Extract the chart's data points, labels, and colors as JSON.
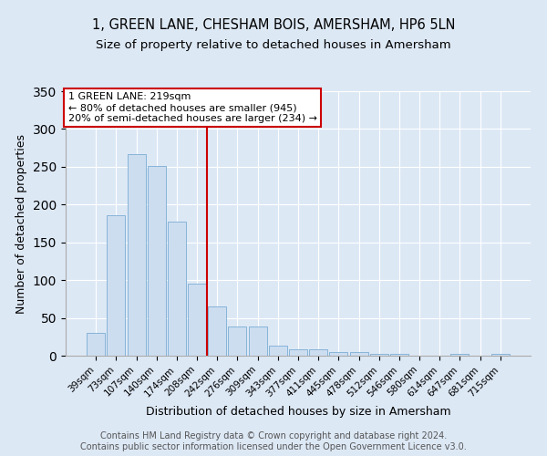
{
  "title": "1, GREEN LANE, CHESHAM BOIS, AMERSHAM, HP6 5LN",
  "subtitle": "Size of property relative to detached houses in Amersham",
  "xlabel": "Distribution of detached houses by size in Amersham",
  "ylabel": "Number of detached properties",
  "bar_labels": [
    "39sqm",
    "73sqm",
    "107sqm",
    "140sqm",
    "174sqm",
    "208sqm",
    "242sqm",
    "276sqm",
    "309sqm",
    "343sqm",
    "377sqm",
    "411sqm",
    "445sqm",
    "478sqm",
    "512sqm",
    "546sqm",
    "580sqm",
    "614sqm",
    "647sqm",
    "681sqm",
    "715sqm"
  ],
  "bar_values": [
    30,
    186,
    267,
    251,
    177,
    95,
    65,
    39,
    39,
    13,
    9,
    8,
    5,
    5,
    3,
    3,
    0,
    0,
    2,
    0,
    2
  ],
  "bar_color": "#ccddf0",
  "bar_edge_color": "#7aadd4",
  "ylim": [
    0,
    350
  ],
  "yticks": [
    0,
    50,
    100,
    150,
    200,
    250,
    300,
    350
  ],
  "vline_x_index": 5.5,
  "vline_color": "#cc0000",
  "annotation_title": "1 GREEN LANE: 219sqm",
  "annotation_line1": "← 80% of detached houses are smaller (945)",
  "annotation_line2": "20% of semi-detached houses are larger (234) →",
  "annotation_box_facecolor": "#ffffff",
  "annotation_box_edgecolor": "#cc0000",
  "footer_line1": "Contains HM Land Registry data © Crown copyright and database right 2024.",
  "footer_line2": "Contains public sector information licensed under the Open Government Licence v3.0.",
  "background_color": "#dde8f5",
  "plot_background": "#dde8f5",
  "title_fontsize": 10.5,
  "subtitle_fontsize": 9.5,
  "axis_label_fontsize": 9,
  "tick_fontsize": 7.5,
  "annotation_fontsize": 8,
  "footer_fontsize": 7
}
